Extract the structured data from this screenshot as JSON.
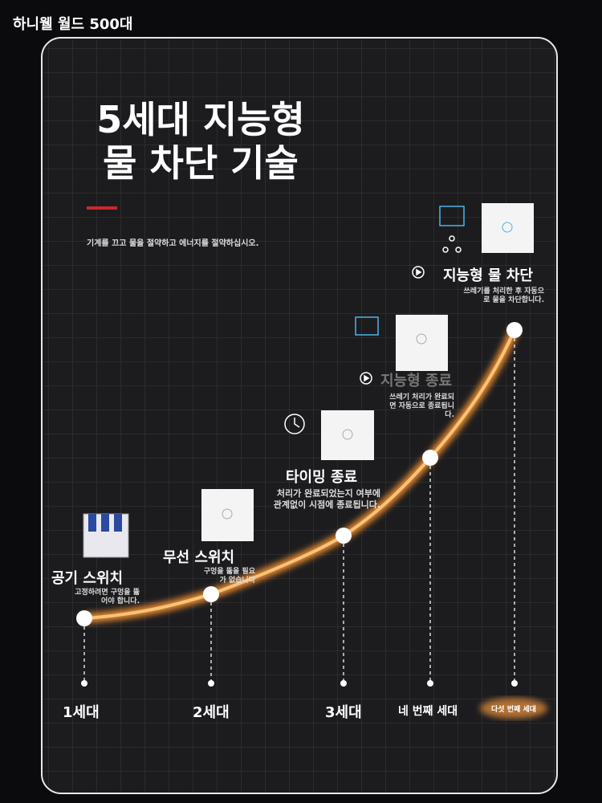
{
  "header": {
    "brand": "하니웰 월드 500대"
  },
  "hero": {
    "title_lines": [
      "5세대 지능형",
      "물 차단 기술"
    ],
    "subtitle": "기계를 끄고 물을 절약하고 에너지를 절약하십시오."
  },
  "stages": [
    {
      "title": "공기 스위치",
      "description": "고정하려면 구멍을 뚫어야 합니다.",
      "generation": "1세대"
    },
    {
      "title": "무선 스위치",
      "description": "구멍을 뚫을 필요가 없습니다",
      "generation": "2세대"
    },
    {
      "title": "타이밍 종료",
      "description": "처리가 완료되었는지 여부에 관계없이 시점에 종료됩니다.",
      "generation": "3세대"
    },
    {
      "title": "지능형 종료",
      "description": "쓰레기 처리가 완료되면 자동으로 종료됩니다.",
      "generation": "네 번째 세대"
    },
    {
      "title": "지능형 물 차단",
      "description": "쓰레기를 처리한 후 자동으로 물을 차단합니다.",
      "generation": "다섯 번째 세대"
    }
  ]
}
